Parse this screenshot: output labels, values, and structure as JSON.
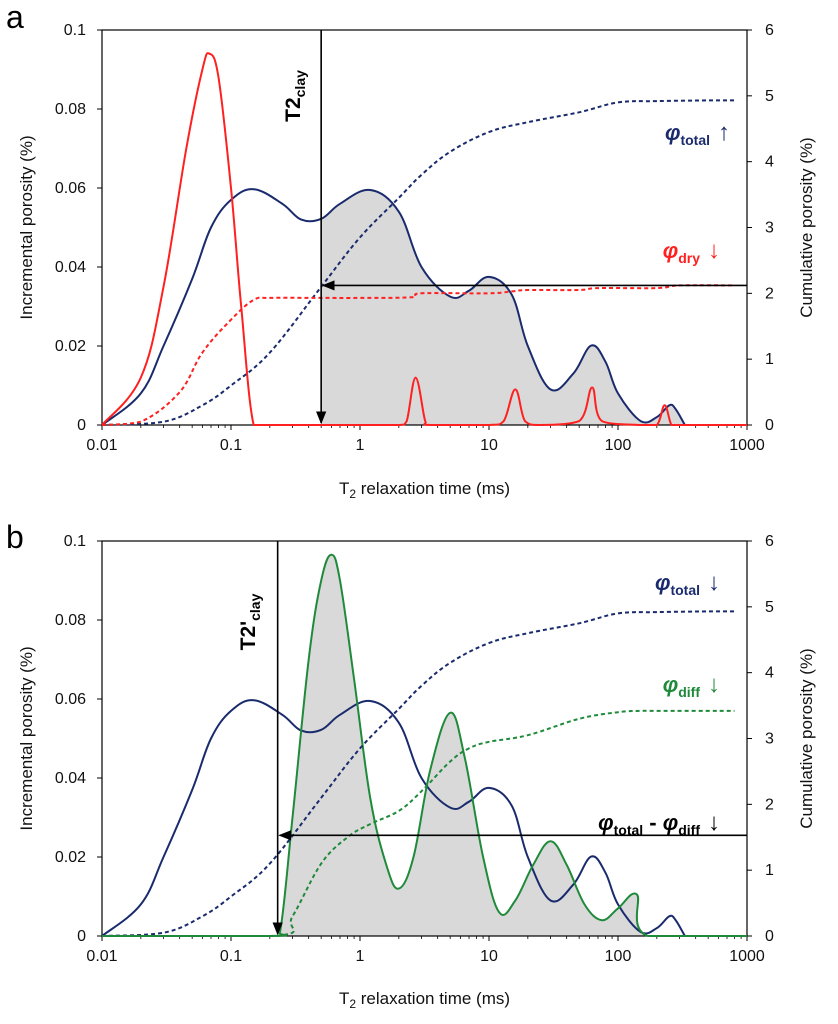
{
  "colors": {
    "total": "#1a2b6d",
    "dry": "#ff2020",
    "diff": "#1f8a3a",
    "fill": "#d9d9d9",
    "arrow": "#000000"
  },
  "panels": [
    {
      "label": "a",
      "xlabel_main": "T",
      "xlabel_sub": "2",
      "xlabel_rest": " relaxation time (ms)",
      "ylabel_left": "Incremental porosity (%)",
      "ylabel_right": "Cumulative porosity (%)",
      "xticks": [
        "0.01",
        "0.1",
        "1",
        "10",
        "100",
        "1000"
      ],
      "yticks_left": [
        "0",
        "0.02",
        "0.04",
        "0.06",
        "0.08",
        "0.1"
      ],
      "yticks_right": [
        "0",
        "1",
        "2",
        "3",
        "4",
        "5",
        "6"
      ],
      "cutoff_main": "T2",
      "cutoff_sub": "clay",
      "legend": [
        {
          "phi": "φ",
          "sub": "total",
          "arrow": "↑",
          "series": "total"
        },
        {
          "phi": "φ",
          "sub": "dry",
          "arrow": "↓",
          "series": "dry"
        }
      ]
    },
    {
      "label": "b",
      "xlabel_main": "T",
      "xlabel_sub": "2",
      "xlabel_rest": " relaxation time (ms)",
      "ylabel_left": "Incremental porosity (%)",
      "ylabel_right": "Cumulative porosity (%)",
      "xticks": [
        "0.01",
        "0.1",
        "1",
        "10",
        "100",
        "1000"
      ],
      "yticks_left": [
        "0",
        "0.02",
        "0.04",
        "0.06",
        "0.08",
        "0.1"
      ],
      "yticks_right": [
        "0",
        "1",
        "2",
        "3",
        "4",
        "5",
        "6"
      ],
      "cutoff_main": "T2'",
      "cutoff_sub": "clay",
      "legend": [
        {
          "phi": "φ",
          "sub": "total",
          "arrow": "↓",
          "series": "total"
        },
        {
          "phi": "φ",
          "sub": "diff",
          "arrow": "↓",
          "series": "diff"
        },
        {
          "phi": "φ",
          "sub": "total",
          "minus": " - ",
          "phi2": "φ",
          "sub2": "diff",
          "arrow": "↓",
          "series": "arrow"
        }
      ]
    }
  ],
  "chart_data": [
    {
      "type": "line",
      "panel": "a",
      "xscale": "log",
      "xlim": [
        0.01,
        1000
      ],
      "ylim_left": [
        0,
        0.1
      ],
      "ylim_right": [
        0,
        6
      ],
      "xlabel": "T2 relaxation time (ms)",
      "ylabel": "Incremental porosity (%)",
      "ylabel_right": "Cumulative porosity (%)",
      "series": [
        {
          "name": "total incremental",
          "color": "total",
          "axis": "left",
          "style": "solid",
          "x": [
            0.01,
            0.02,
            0.03,
            0.05,
            0.07,
            0.1,
            0.15,
            0.25,
            0.35,
            0.5,
            0.7,
            1.2,
            2,
            3,
            5,
            7,
            10,
            15,
            20,
            30,
            45,
            62,
            80,
            100,
            150,
            200,
            250,
            280,
            330
          ],
          "y": [
            0,
            0.008,
            0.02,
            0.037,
            0.05,
            0.057,
            0.0597,
            0.056,
            0.052,
            0.0522,
            0.056,
            0.0595,
            0.054,
            0.04,
            0.0325,
            0.034,
            0.0375,
            0.033,
            0.02,
            0.009,
            0.013,
            0.0201,
            0.016,
            0.008,
            0.001,
            0.002,
            0.005,
            0.004,
            0
          ]
        },
        {
          "name": "dry incremental",
          "color": "dry",
          "axis": "left",
          "style": "solid",
          "x": [
            0.01,
            0.02,
            0.03,
            0.045,
            0.06,
            0.068,
            0.08,
            0.1,
            0.12,
            0.15,
            0.2,
            0.5,
            1,
            2,
            2.3,
            2.7,
            3.2,
            3.5,
            10,
            13,
            16,
            19,
            25,
            50,
            63,
            75,
            150,
            200,
            230,
            260,
            300,
            1000
          ],
          "y": [
            0,
            0.012,
            0.035,
            0.07,
            0.09,
            0.094,
            0.088,
            0.06,
            0.03,
            0,
            0,
            0,
            0,
            0,
            0.001,
            0.012,
            0.001,
            0,
            0,
            0.001,
            0.009,
            0.001,
            0,
            0.001,
            0.0095,
            0.001,
            0,
            0,
            0.005,
            0,
            0,
            0
          ]
        },
        {
          "name": "total cumulative",
          "color": "total",
          "axis": "right",
          "style": "dashed",
          "x": [
            0.01,
            0.03,
            0.06,
            0.1,
            0.2,
            0.5,
            1,
            2,
            3,
            5,
            10,
            20,
            50,
            100,
            200,
            500,
            800
          ],
          "y": [
            0,
            0.05,
            0.3,
            0.6,
            1.1,
            2.1,
            2.85,
            3.45,
            3.8,
            4.15,
            4.45,
            4.6,
            4.75,
            4.9,
            4.92,
            4.93,
            4.93
          ]
        },
        {
          "name": "dry cumulative",
          "color": "dry",
          "axis": "right",
          "style": "dashed",
          "x": [
            0.01,
            0.02,
            0.04,
            0.06,
            0.1,
            0.15,
            0.2,
            0.5,
            1,
            2.5,
            3,
            10,
            15,
            20,
            50,
            70,
            200,
            300,
            800
          ],
          "y": [
            0,
            0.05,
            0.5,
            1.1,
            1.6,
            1.9,
            1.93,
            1.93,
            1.93,
            1.94,
            2,
            2,
            2.03,
            2.05,
            2.05,
            2.08,
            2.08,
            2.12,
            2.12
          ]
        }
      ],
      "cutoff": {
        "label": "T2clay",
        "x": 0.5
      },
      "arrow": {
        "from_x": 1000,
        "to_x": 0.5,
        "y_right": 2.12
      }
    },
    {
      "type": "line",
      "panel": "b",
      "xscale": "log",
      "xlim": [
        0.01,
        1000
      ],
      "ylim_left": [
        0,
        0.1
      ],
      "ylim_right": [
        0,
        6
      ],
      "xlabel": "T2 relaxation time (ms)",
      "ylabel": "Incremental porosity (%)",
      "ylabel_right": "Cumulative porosity (%)",
      "series": [
        {
          "name": "total incremental",
          "color": "total",
          "axis": "left",
          "style": "solid",
          "x": [
            0.01,
            0.02,
            0.03,
            0.05,
            0.07,
            0.1,
            0.15,
            0.25,
            0.35,
            0.5,
            0.7,
            1.2,
            2,
            3,
            5,
            7,
            10,
            15,
            20,
            30,
            45,
            62,
            80,
            100,
            150,
            200,
            250,
            280,
            330
          ],
          "y": [
            0,
            0.008,
            0.02,
            0.037,
            0.05,
            0.057,
            0.0597,
            0.056,
            0.052,
            0.0522,
            0.056,
            0.0595,
            0.054,
            0.04,
            0.0325,
            0.034,
            0.0375,
            0.033,
            0.02,
            0.009,
            0.013,
            0.0201,
            0.016,
            0.008,
            0.001,
            0.002,
            0.005,
            0.004,
            0
          ]
        },
        {
          "name": "diff incremental",
          "color": "diff",
          "axis": "left",
          "style": "solid",
          "x": [
            0.01,
            0.2,
            0.24,
            0.3,
            0.4,
            0.5,
            0.6,
            0.7,
            0.9,
            1.2,
            1.6,
            2,
            2.6,
            3.5,
            5,
            6.5,
            9,
            12,
            16,
            22,
            30,
            40,
            55,
            75,
            100,
            140,
            170,
            1000
          ],
          "y": [
            0,
            0,
            0.001,
            0.03,
            0.07,
            0.09,
            0.0965,
            0.09,
            0.065,
            0.035,
            0.018,
            0.012,
            0.02,
            0.042,
            0.0565,
            0.045,
            0.02,
            0.006,
            0.009,
            0.018,
            0.024,
            0.018,
            0.008,
            0.004,
            0.007,
            0.0105,
            0,
            0
          ]
        },
        {
          "name": "total cumulative",
          "color": "total",
          "axis": "right",
          "style": "dashed",
          "x": [
            0.01,
            0.03,
            0.06,
            0.1,
            0.2,
            0.5,
            1,
            2,
            3,
            5,
            10,
            20,
            50,
            100,
            200,
            500,
            800
          ],
          "y": [
            0,
            0.05,
            0.3,
            0.6,
            1.1,
            2.1,
            2.85,
            3.45,
            3.8,
            4.15,
            4.45,
            4.6,
            4.75,
            4.9,
            4.92,
            4.93,
            4.93
          ]
        },
        {
          "name": "diff cumulative",
          "color": "diff",
          "axis": "right",
          "style": "dashed",
          "x": [
            0.01,
            0.22,
            0.3,
            0.5,
            0.8,
            1.2,
            2,
            3,
            5,
            7,
            10,
            20,
            50,
            100,
            150,
            200,
            800
          ],
          "y": [
            0,
            0,
            0.3,
            1.1,
            1.5,
            1.7,
            1.9,
            2.2,
            2.65,
            2.85,
            2.95,
            3.05,
            3.3,
            3.4,
            3.42,
            3.42,
            3.42
          ]
        }
      ],
      "cutoff": {
        "label": "T2'clay",
        "x": 0.23
      },
      "arrow": {
        "from_x": 1000,
        "to_x": 0.23,
        "y_right": 1.53
      }
    }
  ]
}
